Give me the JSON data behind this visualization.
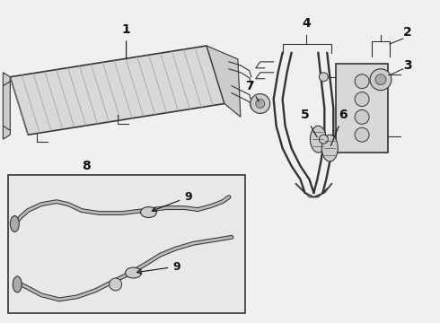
{
  "bg_color": "#f0f0f0",
  "line_color": "#333333",
  "label_color": "#111111",
  "fill_light": "#d8d8d8",
  "fill_mid": "#cccccc",
  "fill_dark": "#aaaaaa",
  "hatch_color": "#999999",
  "box_bg": "#e8e8e8"
}
